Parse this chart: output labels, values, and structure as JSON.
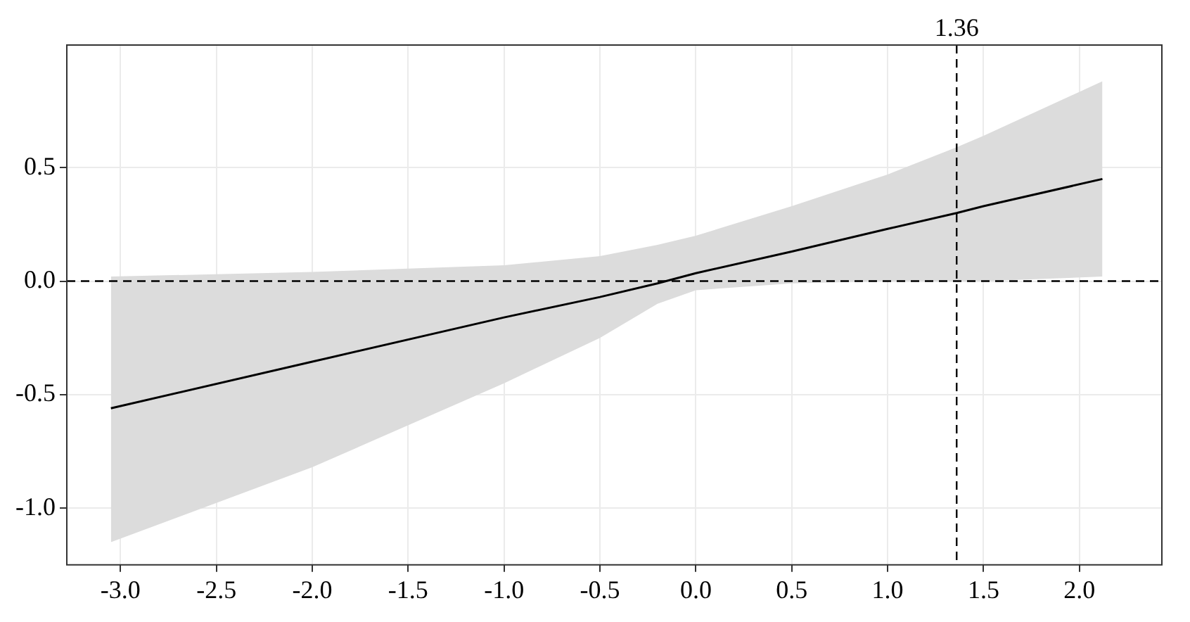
{
  "chart_data": {
    "type": "line",
    "xlim": [
      -3.28,
      2.43
    ],
    "ylim": [
      -1.25,
      1.04
    ],
    "xticks": [
      {
        "value": -3,
        "label": "-3.0"
      },
      {
        "value": -2.5,
        "label": "-2.5"
      },
      {
        "value": -2,
        "label": "-2.0"
      },
      {
        "value": -1.5,
        "label": "-1.5"
      },
      {
        "value": -1,
        "label": "-1.0"
      },
      {
        "value": -0.5,
        "label": "-0.5"
      },
      {
        "value": 0,
        "label": "0.0"
      },
      {
        "value": 0.5,
        "label": "0.5"
      },
      {
        "value": 1,
        "label": "1.0"
      },
      {
        "value": 1.5,
        "label": "1.5"
      },
      {
        "value": 2,
        "label": "2.0"
      }
    ],
    "yticks": [
      {
        "value": -1,
        "label": "-1.0"
      },
      {
        "value": -0.5,
        "label": "-0.5"
      },
      {
        "value": 0,
        "label": "0.0"
      },
      {
        "value": 0.5,
        "label": "0.5"
      }
    ],
    "grid": true,
    "legend": false,
    "series": [
      {
        "color": "#000000",
        "x": [
          -3.05,
          -2,
          -1,
          -0.5,
          -0.2,
          0,
          0.5,
          1,
          1.36,
          1.5,
          2.12
        ],
        "values": [
          -0.56,
          -0.355,
          -0.16,
          -0.07,
          -0.01,
          0.035,
          0.13,
          0.23,
          0.3,
          0.33,
          0.45
        ],
        "lower": [
          -1.15,
          -0.82,
          -0.45,
          -0.25,
          -0.1,
          -0.04,
          -0.01,
          0,
          0,
          0,
          0.02
        ],
        "upper": [
          0.02,
          0.04,
          0.07,
          0.11,
          0.16,
          0.2,
          0.33,
          0.47,
          0.59,
          0.64,
          0.88
        ]
      }
    ],
    "ref_lines": [
      {
        "axis": "x",
        "value": 1.36,
        "label": "1.36",
        "line_style": "dashed",
        "color": "#000000"
      },
      {
        "axis": "y",
        "value": 0,
        "line_style": "dashed",
        "color": "#000000"
      }
    ]
  }
}
